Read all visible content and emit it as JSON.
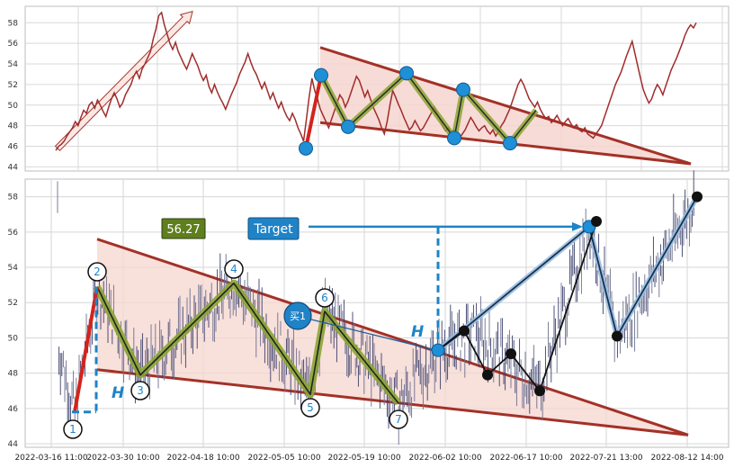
{
  "chart_data": [
    {
      "type": "line",
      "panel": "top",
      "ylim": [
        43.6,
        59.6
      ],
      "yticks": [
        44,
        46,
        48,
        50,
        52,
        54,
        56,
        58
      ],
      "grid": true,
      "series": [
        {
          "color": "#a02c2c",
          "values": [
            45.6,
            46.0,
            46.2,
            46.5,
            47.0,
            47.4,
            47.8,
            48.4,
            48.0,
            48.8,
            49.5,
            49.2,
            50.0,
            50.3,
            49.7,
            50.5,
            50.0,
            49.4,
            48.9,
            49.8,
            50.6,
            51.2,
            50.6,
            49.8,
            50.2,
            51.0,
            51.5,
            52.0,
            52.8,
            53.3,
            52.6,
            53.5,
            54.0,
            54.6,
            55.2,
            56.4,
            57.4,
            58.7,
            59.0,
            57.8,
            56.9,
            56.0,
            55.4,
            56.1,
            55.2,
            54.6,
            54.0,
            53.5,
            54.2,
            55.0,
            54.4,
            53.8,
            53.0,
            52.4,
            52.9,
            51.8,
            51.2,
            52.0,
            51.3,
            50.7,
            50.2,
            49.6,
            50.3,
            51.0,
            51.6,
            52.2,
            53.0,
            53.6,
            54.2,
            55.0,
            54.2,
            53.5,
            53.0,
            52.3,
            51.6,
            52.2,
            51.4,
            50.6,
            51.2,
            50.4,
            49.7,
            50.3,
            49.5,
            48.9,
            48.5,
            49.2,
            48.6,
            47.8,
            47.2,
            46.5,
            48.6,
            50.8,
            52.6,
            51.4,
            50.6,
            49.6,
            49.0,
            48.4,
            47.8,
            48.6,
            49.4,
            50.2,
            51.0,
            50.6,
            49.8,
            50.4,
            51.2,
            52.0,
            52.8,
            52.4,
            51.6,
            50.8,
            51.4,
            50.6,
            49.8,
            49.2,
            48.6,
            47.8,
            47.2,
            48.4,
            50.0,
            51.4,
            50.8,
            50.1,
            49.5,
            48.8,
            48.2,
            47.6,
            47.9,
            48.5,
            48.0,
            47.5,
            47.8,
            48.3,
            48.8,
            49.3,
            49.8,
            49.2,
            48.6,
            47.9,
            47.5,
            47.8,
            47.2,
            47.6,
            47.0,
            46.8,
            47.2,
            47.6,
            48.2,
            48.8,
            48.4,
            47.9,
            47.5,
            47.8,
            48.0,
            47.5,
            47.2,
            47.6,
            47.0,
            47.4,
            48.0,
            48.4,
            49.0,
            49.6,
            50.4,
            51.2,
            52.0,
            52.5,
            52.0,
            51.3,
            50.6,
            50.2,
            49.8,
            50.3,
            49.6,
            49.1,
            48.7,
            48.9,
            48.3,
            48.6,
            49.0,
            48.5,
            48.0,
            48.4,
            48.7,
            48.2,
            47.8,
            48.1,
            47.6,
            47.4,
            47.8,
            47.2,
            47.0,
            46.8,
            47.2,
            47.6,
            48.0,
            48.8,
            49.6,
            50.4,
            51.2,
            52.0,
            52.6,
            53.2,
            54.0,
            54.8,
            55.5,
            56.2,
            55.0,
            53.8,
            52.6,
            51.5,
            50.8,
            50.2,
            50.6,
            51.4,
            52.0,
            51.6,
            51.0,
            51.8,
            52.6,
            53.4,
            54.0,
            54.6,
            55.3,
            56.0,
            56.8,
            57.4,
            57.8,
            57.5,
            58.0
          ]
        }
      ]
    },
    {
      "type": "line",
      "panel": "bottom",
      "ylim": [
        43.8,
        59.0
      ],
      "yticks": [
        44,
        46,
        48,
        50,
        52,
        54,
        56,
        58
      ],
      "xtick_labels": [
        "2022-03-16 11:00",
        "2022-03-30 10:00",
        "2022-04-18 10:00",
        "2022-05-05 10:00",
        "2022-05-19 10:00",
        "2022-06-02 10:00",
        "2022-06-17 10:00",
        "2022-07-21 13:00",
        "2022-08-12 14:00"
      ],
      "grid": true,
      "pattern": {
        "point_labels": [
          "1",
          "2",
          "3",
          "4",
          "5",
          "6",
          "7"
        ],
        "x": [
          0,
          1,
          2,
          3,
          4,
          5,
          6
        ],
        "y": [
          45.8,
          52.9,
          47.9,
          53.1,
          46.8,
          51.5,
          46.3
        ]
      },
      "projection_points": [
        {
          "x": 7,
          "y": 49.3
        },
        {
          "x": 8,
          "y": 56.5
        },
        {
          "x": 9,
          "y": 50.1
        },
        {
          "x": 10,
          "y": 58.0
        }
      ],
      "secondary_points": [
        {
          "x": 7.2,
          "y": 50.4
        },
        {
          "x": 7.5,
          "y": 47.9
        },
        {
          "x": 7.9,
          "y": 49.1
        },
        {
          "x": 8.3,
          "y": 47.0
        },
        {
          "x": 9.0,
          "y": 56.6
        }
      ],
      "annotations": {
        "price_box": "56.27",
        "target_box": "Target",
        "buy_marker": "买1",
        "h_left": "H",
        "h_right": "H"
      },
      "colors": {
        "wedge_fill": "#f6d5cf",
        "wedge_line": "#a33127",
        "pattern_green": "#8aa533",
        "target_blue": "#1f83c6",
        "price_box": "#5f7f1e"
      }
    }
  ]
}
